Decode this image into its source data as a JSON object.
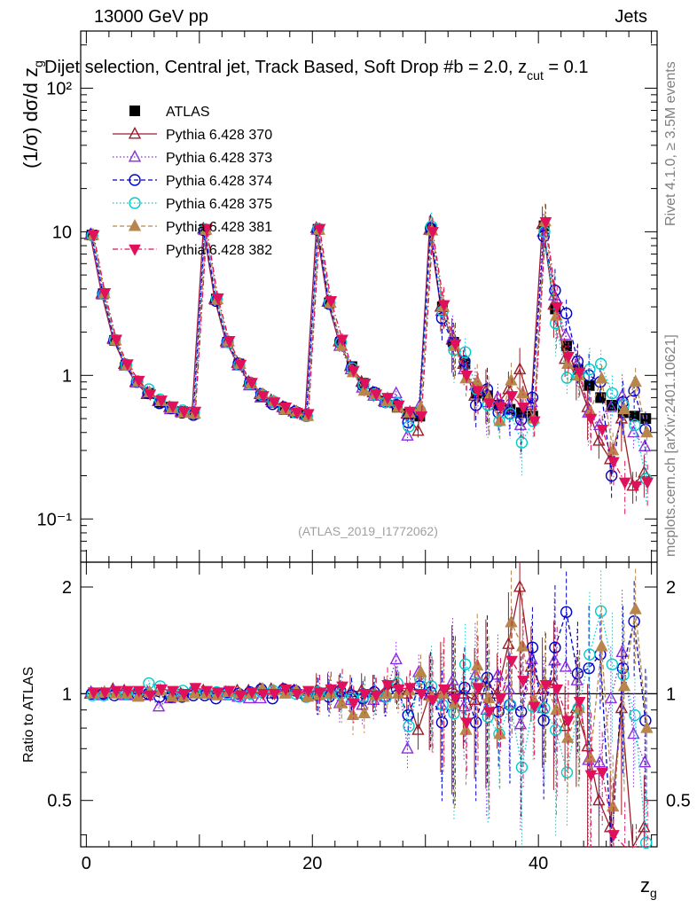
{
  "header": {
    "energy": "13000 GeV pp",
    "category": "Jets"
  },
  "side": {
    "rivet": "Rivet 4.1.0, ≥ 3.5M events",
    "mcplots": "mcplots.cern.ch [arXiv:2401.10621]"
  },
  "chart_data": {
    "type": "scatter",
    "title": "Dijet selection, Central jet, Track Based, Soft Drop #b = 2.0, z_cut = 0.1",
    "xlabel": "z_g",
    "ylabel": "(1/σ) dσ/d z_g",
    "ratio_ylabel": "Ratio to ATLAS",
    "analysis": "(ATLAS_2019_I1772062)",
    "xlim": [
      -0.5,
      50.5
    ],
    "ylim": [
      0.05,
      250
    ],
    "ratio_ylim": [
      0.37,
      2.35
    ],
    "log_y": true,
    "x_ticks": [
      0,
      20,
      40
    ],
    "y_tick_labels": [
      "10⁻¹",
      "1",
      "10",
      "10²"
    ],
    "ratio_tick_labels": [
      "0.5",
      "1",
      "2"
    ],
    "x": [
      0.5,
      1.5,
      2.5,
      3.5,
      4.5,
      5.5,
      6.5,
      7.5,
      8.5,
      9.5,
      10.5,
      11.5,
      12.5,
      13.5,
      14.5,
      15.5,
      16.5,
      17.5,
      18.5,
      19.5,
      20.5,
      21.5,
      22.5,
      23.5,
      24.5,
      25.5,
      26.5,
      27.5,
      28.5,
      29.5,
      30.5,
      31.5,
      32.5,
      33.5,
      34.5,
      35.5,
      36.5,
      37.5,
      38.5,
      39.5,
      40.5,
      41.5,
      42.5,
      43.5,
      44.5,
      45.5,
      46.5,
      47.5,
      48.5,
      49.5
    ],
    "series": [
      {
        "name": "ATLAS",
        "color": "#000000",
        "marker": "square",
        "style": "none",
        "values": [
          9.5,
          3.7,
          1.75,
          1.18,
          0.9,
          0.75,
          0.65,
          0.6,
          0.56,
          0.54,
          10.3,
          3.4,
          1.7,
          1.2,
          0.88,
          0.72,
          0.65,
          0.58,
          0.55,
          0.53,
          10.4,
          3.2,
          1.7,
          1.15,
          0.88,
          0.75,
          0.66,
          0.6,
          0.54,
          0.52,
          10.4,
          3.0,
          1.7,
          1.2,
          0.75,
          0.72,
          0.62,
          0.58,
          0.55,
          0.52,
          11.0,
          2.9,
          1.6,
          1.1,
          0.85,
          0.7,
          0.62,
          0.55,
          0.52,
          0.5
        ],
        "ratio": []
      },
      {
        "name": "Pythia 6.428 370",
        "color": "#9b1c2a",
        "marker": "triangle-open",
        "style": "solid",
        "values": [
          9.5,
          3.7,
          1.8,
          1.2,
          0.9,
          0.74,
          0.66,
          0.6,
          0.56,
          0.55,
          10.5,
          3.4,
          1.72,
          1.22,
          0.9,
          0.74,
          0.67,
          0.6,
          0.56,
          0.53,
          10.6,
          3.25,
          1.72,
          1.16,
          0.9,
          0.76,
          0.66,
          0.64,
          0.54,
          0.41,
          10.3,
          3.0,
          1.77,
          1.2,
          0.72,
          0.78,
          0.62,
          0.8,
          1.1,
          0.62,
          11.3,
          3.1,
          1.3,
          1.0,
          0.6,
          0.35,
          0.26,
          0.5,
          0.17,
          0.21
        ],
        "ratio": [
          1.0,
          1.0,
          1.03,
          1.02,
          1.0,
          0.99,
          1.02,
          1.0,
          1.0,
          1.02,
          1.02,
          1.0,
          1.01,
          1.02,
          1.02,
          1.03,
          1.03,
          1.03,
          1.02,
          1.0,
          1.02,
          1.02,
          1.01,
          1.01,
          1.02,
          1.01,
          1.0,
          1.07,
          1.0,
          0.79,
          0.99,
          1.0,
          1.04,
          1.0,
          0.96,
          1.08,
          1.0,
          1.38,
          2.0,
          1.19,
          1.03,
          1.07,
          0.81,
          0.91,
          0.71,
          0.5,
          0.42,
          0.91,
          0.33,
          0.42
        ]
      },
      {
        "name": "Pythia 6.428 373",
        "color": "#8a2be2",
        "marker": "triangle-open",
        "style": "dotted",
        "values": [
          9.6,
          3.65,
          1.78,
          1.17,
          0.89,
          0.76,
          0.66,
          0.58,
          0.55,
          0.55,
          10.3,
          3.35,
          1.68,
          1.17,
          0.85,
          0.7,
          0.65,
          0.6,
          0.56,
          0.53,
          10.3,
          3.3,
          1.6,
          1.1,
          0.82,
          0.72,
          0.65,
          0.75,
          0.38,
          0.6,
          10.4,
          2.8,
          1.85,
          1.1,
          0.85,
          0.65,
          0.7,
          0.6,
          0.45,
          0.65,
          10.0,
          3.6,
          1.9,
          1.2,
          0.55,
          0.45,
          0.6,
          0.72,
          0.4,
          0.32
        ],
        "ratio": [
          1.01,
          0.99,
          1.02,
          0.99,
          0.99,
          1.01,
          0.92,
          0.97,
          0.98,
          1.02,
          1.0,
          0.99,
          0.99,
          0.98,
          0.97,
          0.97,
          1.0,
          1.03,
          1.02,
          1.0,
          0.99,
          1.03,
          0.94,
          0.96,
          0.93,
          0.96,
          0.98,
          1.25,
          0.7,
          1.15,
          1.0,
          0.93,
          1.09,
          0.92,
          1.13,
          0.9,
          1.13,
          1.03,
          0.82,
          1.25,
          0.91,
          1.24,
          1.19,
          1.09,
          0.65,
          0.64,
          0.97,
          1.31,
          0.77,
          0.64
        ]
      },
      {
        "name": "Pythia 6.428 374",
        "color": "#0000cc",
        "marker": "circle-open",
        "style": "dashed",
        "values": [
          9.5,
          3.72,
          1.76,
          1.19,
          0.9,
          0.75,
          0.64,
          0.59,
          0.55,
          0.53,
          10.2,
          3.3,
          1.72,
          1.21,
          0.89,
          0.74,
          0.63,
          0.6,
          0.56,
          0.52,
          10.3,
          3.15,
          1.74,
          1.13,
          0.85,
          0.76,
          0.65,
          0.62,
          0.47,
          0.55,
          10.6,
          2.5,
          1.65,
          1.25,
          0.62,
          0.8,
          0.55,
          0.54,
          0.49,
          0.7,
          9.3,
          3.9,
          2.7,
          1.25,
          1.0,
          0.9,
          0.2,
          0.65,
          0.78,
          0.42
        ],
        "ratio": [
          1.0,
          1.0,
          0.99,
          1.0,
          1.0,
          1.0,
          0.98,
          0.98,
          0.98,
          0.99,
          0.99,
          0.97,
          1.01,
          1.0,
          1.01,
          1.03,
          0.97,
          1.03,
          1.02,
          0.98,
          0.99,
          0.98,
          1.02,
          0.99,
          0.97,
          1.01,
          0.98,
          1.03,
          0.87,
          1.05,
          1.01,
          0.83,
          0.97,
          1.04,
          0.83,
          1.11,
          0.89,
          0.93,
          0.89,
          1.35,
          0.84,
          1.35,
          1.7,
          1.14,
          1.18,
          1.29,
          0.32,
          1.18,
          1.6,
          0.84
        ]
      },
      {
        "name": "Pythia 6.428 375",
        "color": "#00cccc",
        "marker": "circle-open",
        "style": "dotted",
        "values": [
          9.4,
          3.68,
          1.77,
          1.18,
          0.91,
          0.8,
          0.68,
          0.6,
          0.57,
          0.55,
          10.4,
          3.42,
          1.7,
          1.18,
          0.88,
          0.73,
          0.66,
          0.59,
          0.55,
          0.52,
          10.5,
          3.2,
          1.7,
          1.12,
          0.86,
          0.74,
          0.65,
          0.64,
          0.44,
          0.57,
          10.9,
          2.8,
          1.5,
          1.45,
          0.8,
          0.62,
          0.48,
          0.54,
          0.34,
          0.48,
          10.0,
          2.3,
          0.96,
          1.0,
          1.1,
          1.2,
          0.75,
          0.62,
          0.45,
          0.19
        ],
        "ratio": [
          0.99,
          0.99,
          1.01,
          1.0,
          1.01,
          1.07,
          1.05,
          1.0,
          1.02,
          1.02,
          1.01,
          1.01,
          1.0,
          0.98,
          1.0,
          1.01,
          1.02,
          1.02,
          1.0,
          0.98,
          1.01,
          1.0,
          1.0,
          0.97,
          0.98,
          0.99,
          0.98,
          1.07,
          0.81,
          1.1,
          1.05,
          0.93,
          0.88,
          1.21,
          1.07,
          0.86,
          0.77,
          0.93,
          0.62,
          0.92,
          0.91,
          0.79,
          0.6,
          0.91,
          1.29,
          1.71,
          1.21,
          1.13,
          0.87,
          0.38
        ]
      },
      {
        "name": "Pythia 6.428 381",
        "color": "#b8864b",
        "marker": "triangle-filled",
        "style": "dashed",
        "values": [
          9.5,
          3.72,
          1.75,
          1.18,
          0.9,
          0.76,
          0.66,
          0.59,
          0.55,
          0.54,
          10.3,
          3.38,
          1.72,
          1.2,
          0.88,
          0.74,
          0.66,
          0.58,
          0.56,
          0.52,
          10.3,
          3.2,
          1.6,
          1.05,
          0.78,
          0.74,
          0.66,
          0.6,
          0.55,
          0.6,
          10.2,
          3.0,
          1.6,
          0.95,
          0.9,
          0.7,
          0.48,
          0.92,
          0.75,
          0.5,
          11.8,
          2.6,
          1.2,
          1.0,
          0.56,
          0.95,
          0.3,
          0.58,
          0.9,
          0.4
        ],
        "ratio": [
          1.0,
          1.01,
          1.0,
          1.0,
          0.98,
          1.01,
          1.02,
          0.98,
          0.98,
          1.0,
          1.0,
          0.99,
          1.01,
          1.0,
          1.0,
          1.03,
          1.02,
          1.0,
          1.02,
          0.98,
          0.99,
          1.0,
          0.94,
          0.87,
          0.88,
          0.99,
          1.0,
          1.0,
          1.02,
          1.15,
          0.98,
          1.0,
          0.94,
          0.79,
          1.2,
          0.97,
          0.77,
          1.59,
          1.36,
          0.96,
          1.07,
          0.9,
          0.75,
          0.91,
          0.66,
          1.36,
          0.48,
          1.05,
          1.73,
          0.8
        ]
      },
      {
        "name": "Pythia 6.428 382",
        "color": "#e0105a",
        "marker": "triangle-down-filled",
        "style": "dashdot",
        "values": [
          9.5,
          3.75,
          1.78,
          1.2,
          0.92,
          0.74,
          0.67,
          0.61,
          0.56,
          0.56,
          10.5,
          3.45,
          1.74,
          1.19,
          0.89,
          0.72,
          0.65,
          0.6,
          0.55,
          0.54,
          10.5,
          3.3,
          1.78,
          1.08,
          0.88,
          0.74,
          0.7,
          0.62,
          0.56,
          0.52,
          10.0,
          3.1,
          1.65,
          1.0,
          0.78,
          0.64,
          0.6,
          0.72,
          0.6,
          0.48,
          11.7,
          3.0,
          1.35,
          1.05,
          0.5,
          0.42,
          0.25,
          0.18,
          0.17,
          0.18
        ],
        "ratio": [
          1.01,
          1.01,
          1.02,
          1.02,
          1.02,
          0.99,
          1.03,
          1.02,
          1.0,
          1.04,
          1.02,
          1.01,
          1.02,
          0.99,
          1.01,
          1.0,
          1.0,
          1.03,
          1.0,
          1.02,
          1.01,
          1.03,
          1.05,
          0.94,
          1.0,
          0.99,
          1.06,
          1.03,
          1.04,
          1.0,
          0.96,
          1.03,
          0.97,
          0.83,
          1.04,
          0.89,
          0.97,
          1.24,
          1.09,
          0.92,
          1.06,
          1.03,
          0.84,
          0.95,
          0.59,
          0.6,
          0.4,
          0.33,
          0.33,
          0.36
        ]
      }
    ]
  }
}
